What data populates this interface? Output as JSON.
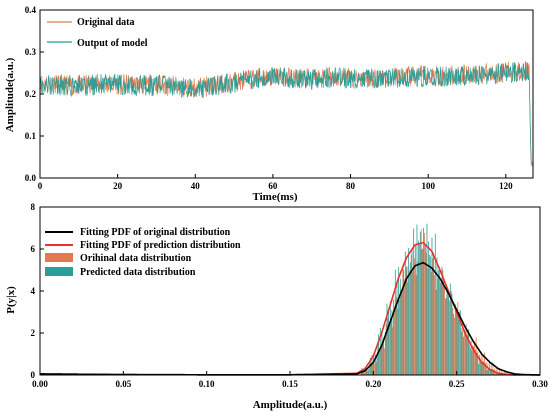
{
  "colors": {
    "original": "#e07a4f",
    "model": "#2a9e97",
    "fit_original": "#000000",
    "fit_prediction": "#e8312a",
    "axis": "#000000"
  },
  "chart_data": [
    {
      "type": "line",
      "xlabel": "Time(ms)",
      "ylabel": "Amplitude(a.u.)",
      "xlim": [
        0,
        127
      ],
      "ylim": [
        0,
        0.4
      ],
      "xticks": [
        "0",
        "20",
        "40",
        "60",
        "80",
        "100",
        "120"
      ],
      "yticks": [
        "0.0",
        "0.1",
        "0.2",
        "0.3",
        "0.4"
      ],
      "legend_position": "top-left",
      "grid": false,
      "series": [
        {
          "name": "Original data",
          "x": [
            0,
            5,
            10,
            15,
            20,
            25,
            30,
            35,
            40,
            45,
            50,
            55,
            60,
            65,
            70,
            75,
            80,
            85,
            90,
            95,
            100,
            105,
            110,
            115,
            120,
            125,
            126,
            126.5,
            127
          ],
          "y": [
            0.225,
            0.222,
            0.22,
            0.224,
            0.223,
            0.221,
            0.222,
            0.218,
            0.215,
            0.22,
            0.228,
            0.236,
            0.242,
            0.238,
            0.236,
            0.24,
            0.239,
            0.238,
            0.24,
            0.241,
            0.244,
            0.243,
            0.246,
            0.248,
            0.252,
            0.255,
            0.255,
            0.03,
            0.03
          ]
        },
        {
          "name": "Output of model",
          "x": [
            0,
            5,
            10,
            15,
            20,
            25,
            30,
            35,
            40,
            45,
            50,
            55,
            60,
            65,
            70,
            75,
            80,
            85,
            90,
            95,
            100,
            105,
            110,
            115,
            120,
            125,
            126,
            126.5,
            127
          ],
          "y": [
            0.224,
            0.221,
            0.219,
            0.223,
            0.222,
            0.22,
            0.221,
            0.217,
            0.214,
            0.219,
            0.227,
            0.235,
            0.241,
            0.237,
            0.235,
            0.239,
            0.238,
            0.237,
            0.239,
            0.24,
            0.243,
            0.242,
            0.245,
            0.247,
            0.251,
            0.254,
            0.254,
            0.04,
            0.03
          ]
        }
      ]
    },
    {
      "type": "bar",
      "xlabel": "Amplitude(a.u.)",
      "ylabel": "P(y|x)",
      "xlim": [
        0,
        0.3
      ],
      "ylim": [
        0,
        8
      ],
      "xticks": [
        "0.00",
        "0.05",
        "0.10",
        "0.15",
        "0.20",
        "0.25",
        "0.30"
      ],
      "yticks": [
        "0",
        "2",
        "4",
        "6",
        "8"
      ],
      "legend_position": "top-left",
      "grid": false,
      "legend": [
        "Fitting PDF of original distribution",
        "Fitting PDF of prediction distribution",
        "Orihinal data distribution",
        "Predicted data distribution"
      ],
      "fit_original": {
        "x": [
          0.0,
          0.05,
          0.1,
          0.15,
          0.19,
          0.195,
          0.2,
          0.205,
          0.21,
          0.215,
          0.22,
          0.225,
          0.23,
          0.235,
          0.24,
          0.245,
          0.25,
          0.255,
          0.26,
          0.265,
          0.27,
          0.275,
          0.28,
          0.285,
          0.29,
          0.3
        ],
        "y": [
          0.05,
          0.02,
          0.01,
          0.01,
          0.05,
          0.2,
          0.6,
          1.4,
          2.5,
          3.6,
          4.6,
          5.2,
          5.35,
          5.1,
          4.6,
          3.9,
          3.1,
          2.3,
          1.6,
          1.0,
          0.6,
          0.3,
          0.15,
          0.05,
          0.02,
          0.0
        ]
      },
      "fit_prediction": {
        "x": [
          0.0,
          0.05,
          0.1,
          0.15,
          0.19,
          0.195,
          0.2,
          0.205,
          0.21,
          0.215,
          0.22,
          0.225,
          0.23,
          0.235,
          0.24,
          0.245,
          0.25,
          0.255,
          0.26,
          0.265,
          0.27,
          0.275,
          0.28,
          0.285,
          0.29,
          0.3
        ],
        "y": [
          0.05,
          0.02,
          0.01,
          0.01,
          0.08,
          0.3,
          0.9,
          2.0,
          3.3,
          4.6,
          5.6,
          6.2,
          6.3,
          5.9,
          5.0,
          4.0,
          3.0,
          2.0,
          1.2,
          0.6,
          0.25,
          0.08,
          0.02,
          0.0,
          0.0,
          0.0
        ]
      },
      "histogram": {
        "bin_centers": [
          0.195,
          0.2,
          0.205,
          0.21,
          0.215,
          0.22,
          0.225,
          0.23,
          0.235,
          0.24,
          0.245,
          0.25,
          0.255,
          0.26,
          0.265,
          0.27,
          0.275,
          0.28,
          0.285
        ],
        "original": [
          0.2,
          0.6,
          1.3,
          2.5,
          3.6,
          4.7,
          5.4,
          6.2,
          5.4,
          4.6,
          3.9,
          3.1,
          2.3,
          1.6,
          1.0,
          0.6,
          0.3,
          0.15,
          0.05
        ],
        "predicted": [
          0.3,
          0.9,
          2.0,
          3.3,
          4.6,
          5.7,
          6.4,
          6.8,
          6.0,
          5.0,
          4.0,
          3.0,
          2.0,
          1.2,
          0.6,
          0.25,
          0.08,
          0.02,
          0.0
        ]
      }
    }
  ]
}
